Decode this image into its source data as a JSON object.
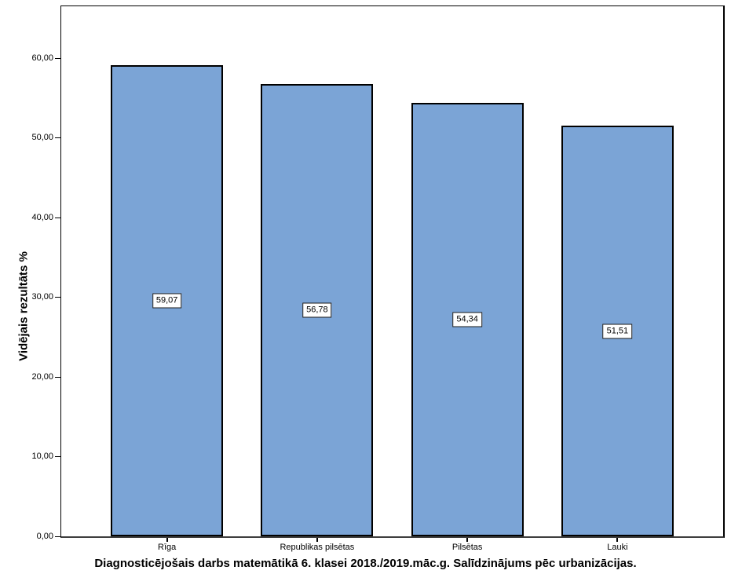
{
  "chart_data": {
    "type": "bar",
    "title": "Diagnosticējošais darbs matemātikā 6. klasei 2018./2019.māc.g. Salīdzinājums pēc urbanizācijas.",
    "xlabel": "",
    "ylabel": "Vidējais rezultāts %",
    "categories": [
      "Rīga",
      "Republikas pilsētas",
      "Pilsētas",
      "Lauki"
    ],
    "values": [
      59.07,
      56.78,
      54.34,
      51.51
    ],
    "value_labels": [
      "59,07",
      "56,78",
      "54,34",
      "51,51"
    ],
    "y_ticks": [
      {
        "value": 0,
        "label": "0,00"
      },
      {
        "value": 10,
        "label": "10,00"
      },
      {
        "value": 20,
        "label": "20,00"
      },
      {
        "value": 30,
        "label": "30,00"
      },
      {
        "value": 40,
        "label": "40,00"
      },
      {
        "value": 50,
        "label": "50,00"
      },
      {
        "value": 60,
        "label": "60,00"
      }
    ],
    "ylim": [
      0,
      66.6
    ],
    "grid": false,
    "legend": "none",
    "bar_color": "#7BA4D6",
    "bar_border_color": "#000000",
    "value_box_bg": "#ffffff",
    "value_box_border": "#1a1a1a"
  }
}
